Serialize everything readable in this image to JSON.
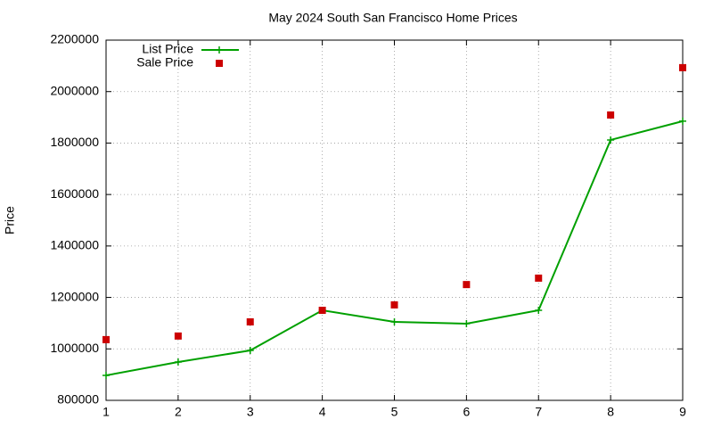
{
  "chart_data": {
    "type": "line",
    "title": "May 2024 South San Francisco Home Prices",
    "y_label": "Price",
    "x": [
      1,
      2,
      3,
      4,
      5,
      6,
      7,
      8,
      9
    ],
    "series": [
      {
        "name": "List Price",
        "color": "#00a000",
        "style": "linespoints",
        "values": [
          897000,
          949000,
          994000,
          1150000,
          1105000,
          1098000,
          1150000,
          1812000,
          1885000
        ]
      },
      {
        "name": "Sale Price",
        "color": "#cc0000",
        "style": "points",
        "values": [
          1036000,
          1050000,
          1105000,
          1150000,
          1171000,
          1250000,
          1275000,
          1909000,
          2093000
        ]
      }
    ],
    "xlim": [
      1,
      9
    ],
    "xticks": [
      1,
      2,
      3,
      4,
      5,
      6,
      7,
      8,
      9
    ],
    "ylim": [
      800000,
      2200000
    ],
    "yticks": [
      800000,
      1000000,
      1200000,
      1400000,
      1600000,
      1800000,
      2000000,
      2200000
    ],
    "grid": true,
    "legend": "top-left"
  }
}
